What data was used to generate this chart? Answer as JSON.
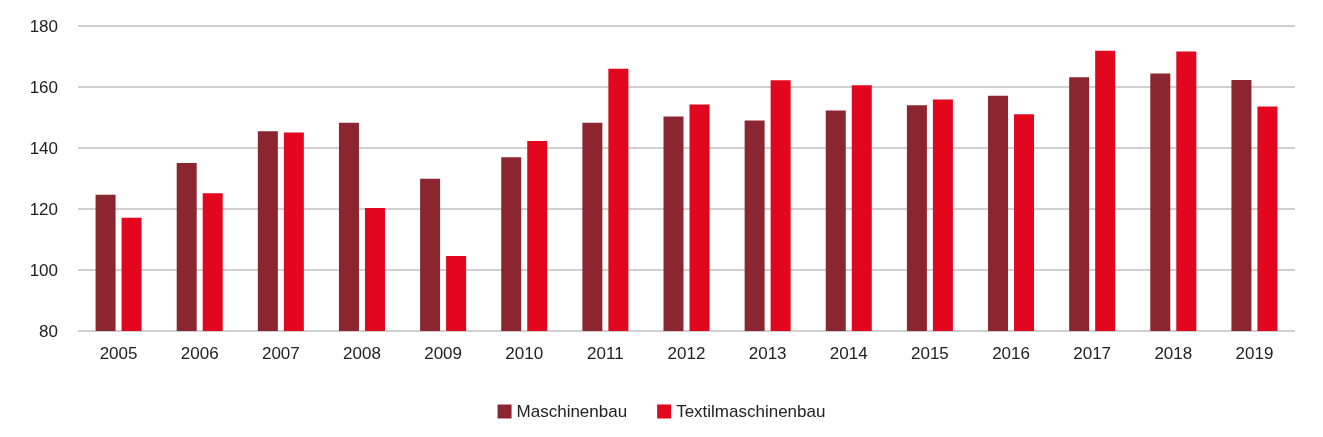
{
  "chart_data": {
    "type": "bar",
    "categories": [
      "2005",
      "2006",
      "2007",
      "2008",
      "2009",
      "2010",
      "2011",
      "2012",
      "2013",
      "2014",
      "2015",
      "2016",
      "2017",
      "2018",
      "2019"
    ],
    "series": [
      {
        "name": "Maschinenbau",
        "color": "#8b2630",
        "values": [
          124.7,
          135.1,
          145.5,
          148.3,
          129.9,
          137.0,
          148.3,
          150.3,
          149.0,
          152.3,
          154.0,
          157.1,
          163.2,
          164.4,
          162.3
        ]
      },
      {
        "name": "Textilmaschinenbau",
        "color": "#e2061f",
        "values": [
          117.1,
          125.2,
          145.1,
          120.3,
          104.6,
          142.3,
          166.0,
          154.3,
          162.2,
          160.6,
          155.9,
          151.1,
          171.9,
          171.6,
          153.6
        ]
      }
    ],
    "ylim": [
      80,
      180
    ],
    "yticks": [
      80,
      100,
      120,
      140,
      160,
      180
    ],
    "grid": "y",
    "legend": "bottom"
  }
}
